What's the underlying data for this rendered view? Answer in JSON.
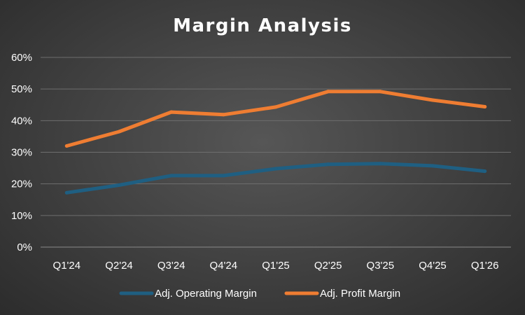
{
  "chart_data": {
    "type": "line",
    "title": "Margin Analysis",
    "xlabel": "",
    "ylabel": "",
    "categories": [
      "Q1'24",
      "Q2'24",
      "Q3'24",
      "Q4'24",
      "Q1'25",
      "Q2'25",
      "Q3'25",
      "Q4'25",
      "Q1'26"
    ],
    "ylim": [
      0,
      60
    ],
    "yticks": [
      "0%",
      "10%",
      "20%",
      "30%",
      "40%",
      "50%",
      "60%"
    ],
    "grid": true,
    "legend_position": "bottom",
    "series": [
      {
        "name": "Adj. Operating Margin",
        "color": "#1f5f82",
        "values": [
          17.2,
          19.6,
          22.6,
          22.6,
          24.8,
          26.2,
          26.4,
          25.7,
          24.0
        ]
      },
      {
        "name": "Adj. Profit Margin",
        "color": "#ef7d32",
        "values": [
          32.0,
          36.5,
          42.7,
          41.9,
          44.3,
          49.2,
          49.2,
          46.5,
          44.4
        ]
      }
    ]
  }
}
